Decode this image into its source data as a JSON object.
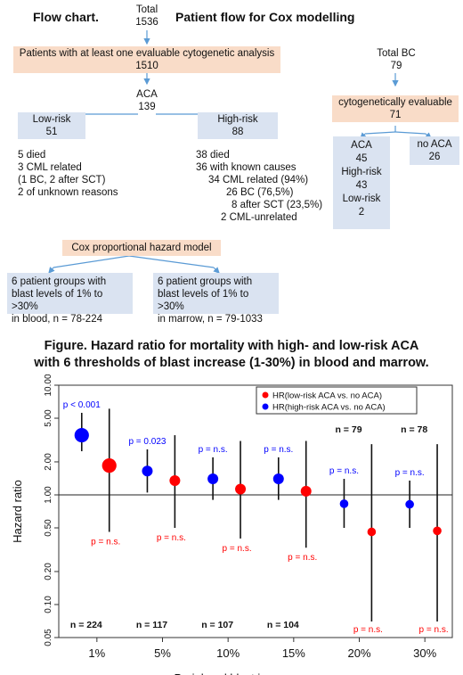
{
  "flow": {
    "title_left": "Flow chart.",
    "title_right": "Patient flow for Cox modelling",
    "total_label": "Total",
    "total_value": "1536",
    "evaluable_line1": "Patients with at least one evaluable cytogenetic analysis",
    "evaluable_value": "1510",
    "aca_label": "ACA",
    "aca_value": "139",
    "lowrisk_label": "Low-risk",
    "lowrisk_value": "51",
    "highrisk_label": "High-risk",
    "highrisk_value": "88",
    "low_outcomes": [
      "5 died",
      "3 CML related",
      "(1 BC, 2 after SCT)",
      "2 of unknown reasons"
    ],
    "high_outcomes": [
      "38 died",
      "36 with known causes",
      "34 CML related (94%)",
      "26 BC (76,5%)",
      "8 after SCT (23,5%)",
      "2 CML-unrelated"
    ],
    "cox_label": "Cox proportional hazard model",
    "blood_group": [
      "6 patient groups with",
      "blast levels of 1% to >30%",
      "in blood, n = 78-224"
    ],
    "marrow_group": [
      "6 patient groups with",
      "blast levels of 1% to >30%",
      "in marrow, n = 79-1033"
    ],
    "bc_total_label": "Total BC",
    "bc_total_value": "79",
    "bc_evaluable_label": "cytogenetically evaluable",
    "bc_evaluable_value": "71",
    "bc_aca_lines": [
      "ACA",
      "45",
      "High-risk",
      "43",
      "Low-risk",
      "2"
    ],
    "bc_noaca_lines": [
      "no ACA",
      "26"
    ]
  },
  "figure": {
    "title_line1": "Figure. Hazard ratio for mortality with high- and low-risk ACA",
    "title_line2": "with 6 thresholds of blast increase (1-30%) in blood and marrow."
  },
  "colors": {
    "high": "#0000ff",
    "low": "#ff0000",
    "box_blue": "#dae3f1",
    "box_peach": "#f9dcc8"
  },
  "chart_data": {
    "type": "scatter",
    "title": "",
    "xlabel": "Peripheral blast increase",
    "ylabel": "Hazard ratio",
    "log_y": true,
    "ylim": [
      0.05,
      10
    ],
    "yticks": [
      "0.05",
      "0.10",
      "0.20",
      "0.50",
      "1.00",
      "2.00",
      "5.00",
      "10.00"
    ],
    "ytick_values": [
      0.05,
      0.1,
      0.2,
      0.5,
      1,
      2,
      5,
      10
    ],
    "reference_line": 1,
    "categories": [
      "1%",
      "5%",
      "10%",
      "15%",
      "20%",
      "30%"
    ],
    "n_labels": [
      "n = 224",
      "n = 117",
      "n = 107",
      "n = 104",
      "n = 79",
      "n = 78"
    ],
    "n_label_position": [
      "bottom",
      "bottom",
      "bottom",
      "bottom",
      "top",
      "top"
    ],
    "legend": {
      "placement": "top-right",
      "entries": [
        "HR(low-risk ACA vs. no ACA)",
        "HR(high-risk ACA vs. no ACA)"
      ]
    },
    "series": [
      {
        "name": "HR(high-risk ACA vs. no ACA)",
        "color": "#0000ff",
        "values": [
          3.5,
          1.65,
          1.4,
          1.4,
          0.83,
          0.82
        ],
        "ci_low": [
          2.5,
          1.05,
          0.9,
          0.9,
          0.5,
          0.5
        ],
        "ci_high": [
          5.6,
          2.6,
          2.2,
          2.2,
          1.4,
          1.35
        ],
        "point_size": [
          1.35,
          1.0,
          1.0,
          1.0,
          0.8,
          0.8
        ],
        "p_labels": [
          "p < 0.001",
          "p = 0.023",
          "p = n.s.",
          "p = n.s.",
          "p = n.s.",
          "p = n.s."
        ]
      },
      {
        "name": "HR(low-risk ACA vs. no ACA)",
        "color": "#ff0000",
        "values": [
          1.85,
          1.35,
          1.13,
          1.08,
          0.46,
          0.47
        ],
        "ci_low": [
          0.46,
          0.5,
          0.4,
          0.33,
          0.07,
          0.07
        ],
        "ci_high": [
          6.1,
          3.5,
          3.1,
          3.1,
          2.9,
          2.9
        ],
        "point_size": [
          1.35,
          1.0,
          1.0,
          1.0,
          0.8,
          0.8
        ],
        "p_labels": [
          "p = n.s.",
          "p = n.s.",
          "p = n.s.",
          "p = n.s.",
          "p = n.s.",
          "p = n.s."
        ]
      }
    ]
  }
}
